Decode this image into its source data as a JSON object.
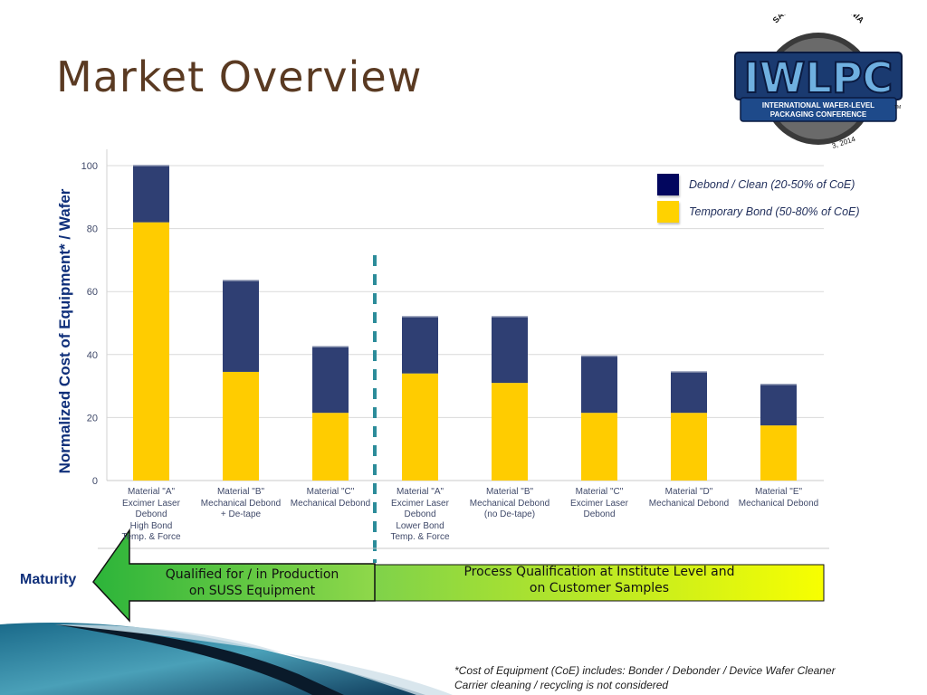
{
  "slide": {
    "title": "Market Overview",
    "logo": {
      "top_text": "SAN JOSE, CALIFORNIA",
      "main_text": "IWLPC",
      "banner_line1": "INTERNATIONAL WAFER-LEVEL",
      "banner_line2": "PACKAGING CONFERENCE",
      "tm": "TM",
      "bottom_text": "3, 2014"
    },
    "maturity_label": "Maturity",
    "stage_left": [
      "Qualified for / in Production",
      "on SUSS Equipment"
    ],
    "stage_right": [
      "Process Qualification at Institute Level and",
      "on Customer Samples"
    ],
    "footnote": [
      "*Cost of Equipment (CoE) includes:  Bonder /  Debonder / Device Wafer Cleaner",
      " Carrier cleaning / recycling is not considered"
    ],
    "colors": {
      "title": "#5a3a22",
      "axis_label": "#0f2f7a",
      "debond": "#2f3f73",
      "temp_bond": "#ffcc00",
      "divider": "#2c8c9a",
      "arrow_green": "#2db83d",
      "bar_yellow": "#f6ff00"
    }
  },
  "chart_data": {
    "type": "bar",
    "stacked": true,
    "ylabel": "Normalized Cost of Equipment* / Wafer",
    "xlabel": "",
    "ylim": [
      0,
      100
    ],
    "yticks": [
      0,
      20,
      40,
      60,
      80,
      100
    ],
    "grid": true,
    "legend_position": "top-right",
    "categories": [
      [
        "Material \"A\"",
        "Excimer Laser",
        "Debond",
        "High Bond",
        "Temp. & Force"
      ],
      [
        "Material \"B\"",
        "Mechanical Debond",
        "+ De-tape"
      ],
      [
        "Material \"C\"",
        "Mechanical Debond"
      ],
      [
        "Material \"A\"",
        "Excimer Laser",
        "Debond",
        "Lower Bond",
        "Temp. & Force"
      ],
      [
        "Material \"B\"",
        "Mechanical Debond",
        "(no De-tape)"
      ],
      [
        "Material \"C\"",
        "Excimer Laser",
        "Debond"
      ],
      [
        "Material \"D\"",
        "Mechanical Debond"
      ],
      [
        "Material \"E\"",
        "Mechanical Debond"
      ]
    ],
    "series": [
      {
        "name": "Temporary Bond (50-80% of CoE)",
        "color": "#ffcc00",
        "values": [
          82,
          34.5,
          21.5,
          34,
          31,
          21.5,
          21.5,
          17.5
        ]
      },
      {
        "name": "Debond / Clean (20-50% of CoE)",
        "color": "#2f3f73",
        "values": [
          18,
          29,
          21,
          18,
          21,
          18,
          13,
          13
        ]
      }
    ],
    "legend": [
      {
        "label": "Debond / Clean (20-50% of CoE)",
        "color": "#2f3f73"
      },
      {
        "label": "Temporary Bond (50-80% of CoE)",
        "color": "#ffcc00"
      }
    ]
  }
}
